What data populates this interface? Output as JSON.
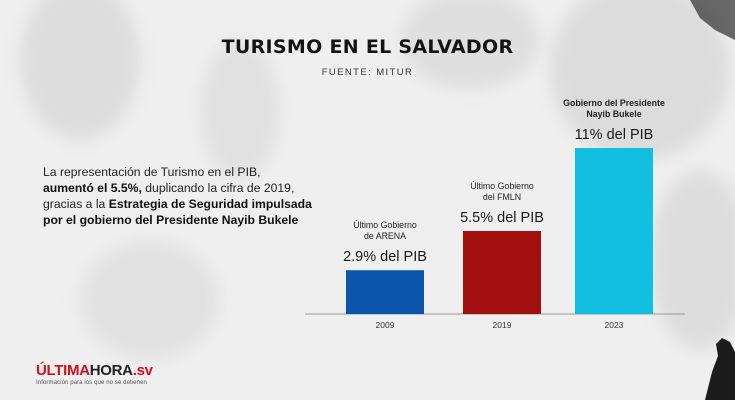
{
  "header": {
    "title": "TURISMO EN EL SALVADOR",
    "source": "FUENTE: MITUR"
  },
  "description": {
    "part1": "La representación de Turismo en el PIB, ",
    "bold1": "aumentó el 5.5%,",
    "part2": " duplicando la cifra de 2019, gracias a la ",
    "bold2": "Estrategia de Seguridad impulsada por el gobierno del Presidente Nayib Bukele"
  },
  "chart_data": {
    "type": "bar",
    "categories": [
      "2009",
      "2019",
      "2023"
    ],
    "values": [
      2.9,
      5.5,
      11
    ],
    "unit": "% del PIB",
    "value_labels": [
      "2.9% del PIB",
      "5.5% del PIB",
      "11% del PIB"
    ],
    "annotations": [
      [
        "Último Gobierno",
        "de ARENA"
      ],
      [
        "Último Gobierno",
        "del FMLN"
      ],
      [
        "Gobierno del Presidente",
        "Nayib Bukele"
      ]
    ],
    "annotation_bold": [
      false,
      false,
      true
    ],
    "colors": [
      "#0b55ad",
      "#a20f0f",
      "#13bfe0"
    ],
    "ylim": [
      0,
      11
    ],
    "title": "",
    "xlabel": "",
    "ylabel": ""
  },
  "logo": {
    "part_red1": "ÚLTIMA",
    "part_dark": "HORA",
    "part_red2": ".sv",
    "tagline": "Información para los que no se detienen"
  },
  "colors": {
    "logo_red": "#d0101a",
    "logo_dark": "#222222",
    "text": "#141414"
  }
}
